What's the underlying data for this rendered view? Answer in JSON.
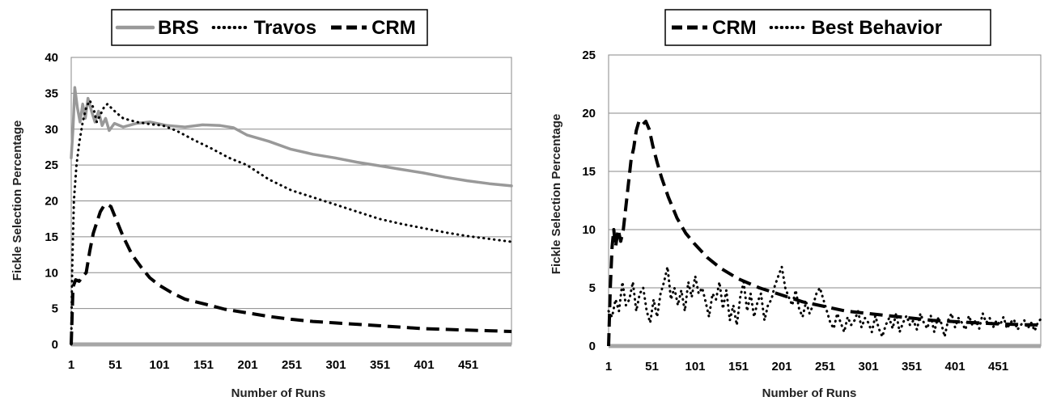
{
  "chart_data": [
    {
      "type": "line",
      "xlabel": "Number of Runs",
      "ylabel": "Fickle Selection Percentage",
      "ylim": [
        0,
        40
      ],
      "xlim": [
        1,
        500
      ],
      "yticks": [
        0,
        5,
        10,
        15,
        20,
        25,
        30,
        35,
        40
      ],
      "xticks": [
        1,
        51,
        101,
        151,
        201,
        251,
        301,
        351,
        401,
        451
      ],
      "grid": true,
      "legend": "top",
      "series": [
        {
          "name": "BRS",
          "color": "#999999",
          "style": "solid",
          "points": [
            [
              1,
              26
            ],
            [
              3,
              30
            ],
            [
              5,
              35.8
            ],
            [
              8,
              33
            ],
            [
              11,
              31
            ],
            [
              14,
              33.5
            ],
            [
              17,
              31.5
            ],
            [
              20,
              34.3
            ],
            [
              24,
              32.5
            ],
            [
              28,
              31
            ],
            [
              32,
              32.5
            ],
            [
              36,
              30.5
            ],
            [
              40,
              31.5
            ],
            [
              44,
              29.8
            ],
            [
              50,
              30.8
            ],
            [
              60,
              30.3
            ],
            [
              75,
              30.8
            ],
            [
              90,
              31
            ],
            [
              110,
              30.5
            ],
            [
              130,
              30.3
            ],
            [
              150,
              30.6
            ],
            [
              170,
              30.5
            ],
            [
              185,
              30.2
            ],
            [
              200,
              29.2
            ],
            [
              225,
              28.3
            ],
            [
              250,
              27.2
            ],
            [
              275,
              26.5
            ],
            [
              300,
              26
            ],
            [
              325,
              25.4
            ],
            [
              350,
              24.9
            ],
            [
              375,
              24.4
            ],
            [
              400,
              23.9
            ],
            [
              425,
              23.3
            ],
            [
              450,
              22.8
            ],
            [
              475,
              22.4
            ],
            [
              500,
              22.1
            ]
          ]
        },
        {
          "name": "Travos",
          "color": "#000000",
          "style": "dotted",
          "points": [
            [
              1,
              0
            ],
            [
              2,
              10
            ],
            [
              4,
              20
            ],
            [
              7,
              25
            ],
            [
              10,
              28
            ],
            [
              14,
              31
            ],
            [
              18,
              33
            ],
            [
              22,
              34
            ],
            [
              26,
              33
            ],
            [
              30,
              31
            ],
            [
              34,
              32
            ],
            [
              38,
              33
            ],
            [
              42,
              33.5
            ],
            [
              46,
              33
            ],
            [
              52,
              32.3
            ],
            [
              60,
              31.5
            ],
            [
              75,
              31
            ],
            [
              90,
              30.7
            ],
            [
              105,
              30.5
            ],
            [
              120,
              29.8
            ],
            [
              140,
              28.5
            ],
            [
              160,
              27.3
            ],
            [
              180,
              26
            ],
            [
              200,
              25
            ],
            [
              225,
              23
            ],
            [
              250,
              21.5
            ],
            [
              275,
              20.5
            ],
            [
              300,
              19.5
            ],
            [
              325,
              18.5
            ],
            [
              350,
              17.5
            ],
            [
              375,
              16.8
            ],
            [
              400,
              16.2
            ],
            [
              425,
              15.6
            ],
            [
              450,
              15.1
            ],
            [
              475,
              14.7
            ],
            [
              500,
              14.3
            ]
          ]
        },
        {
          "name": "CRM",
          "color": "#000000",
          "style": "dashed",
          "points": [
            [
              1,
              0
            ],
            [
              3,
              8
            ],
            [
              6,
              9
            ],
            [
              10,
              8.8
            ],
            [
              14,
              9.5
            ],
            [
              18,
              10
            ],
            [
              22,
              13
            ],
            [
              26,
              15.5
            ],
            [
              30,
              17
            ],
            [
              34,
              18.5
            ],
            [
              38,
              19.3
            ],
            [
              42,
              19.5
            ],
            [
              46,
              19.2
            ],
            [
              50,
              18
            ],
            [
              55,
              16.5
            ],
            [
              60,
              15
            ],
            [
              70,
              12.5
            ],
            [
              80,
              10.8
            ],
            [
              90,
              9.3
            ],
            [
              100,
              8.3
            ],
            [
              115,
              7.2
            ],
            [
              130,
              6.3
            ],
            [
              150,
              5.7
            ],
            [
              175,
              4.9
            ],
            [
              200,
              4.4
            ],
            [
              225,
              3.9
            ],
            [
              250,
              3.5
            ],
            [
              275,
              3.2
            ],
            [
              300,
              3
            ],
            [
              325,
              2.8
            ],
            [
              350,
              2.6
            ],
            [
              375,
              2.4
            ],
            [
              400,
              2.2
            ],
            [
              425,
              2.1
            ],
            [
              450,
              2
            ],
            [
              475,
              1.9
            ],
            [
              500,
              1.8
            ]
          ]
        }
      ]
    },
    {
      "type": "line",
      "xlabel": "Number of Runs",
      "ylabel": "Fickle Selection Percentage",
      "ylim": [
        0,
        25
      ],
      "xlim": [
        1,
        500
      ],
      "yticks": [
        0,
        5,
        10,
        15,
        20,
        25
      ],
      "xticks": [
        1,
        51,
        101,
        151,
        201,
        251,
        301,
        351,
        401,
        451
      ],
      "grid": true,
      "legend": "top",
      "series": [
        {
          "name": "CRM",
          "color": "#000000",
          "style": "dashed",
          "points": [
            [
              1,
              0
            ],
            [
              3,
              5
            ],
            [
              5,
              8.5
            ],
            [
              7,
              10
            ],
            [
              9,
              8.5
            ],
            [
              12,
              10
            ],
            [
              15,
              9
            ],
            [
              18,
              10
            ],
            [
              21,
              12
            ],
            [
              24,
              14
            ],
            [
              27,
              16
            ],
            [
              30,
              17
            ],
            [
              33,
              18.5
            ],
            [
              36,
              19.3
            ],
            [
              40,
              19
            ],
            [
              44,
              19.3
            ],
            [
              48,
              18.6
            ],
            [
              52,
              17.2
            ],
            [
              57,
              15.8
            ],
            [
              62,
              14.5
            ],
            [
              70,
              12.8
            ],
            [
              80,
              11
            ],
            [
              90,
              9.7
            ],
            [
              100,
              8.8
            ],
            [
              115,
              7.6
            ],
            [
              130,
              6.7
            ],
            [
              150,
              5.8
            ],
            [
              175,
              5
            ],
            [
              200,
              4.4
            ],
            [
              225,
              3.8
            ],
            [
              250,
              3.4
            ],
            [
              275,
              3
            ],
            [
              300,
              2.8
            ],
            [
              325,
              2.6
            ],
            [
              350,
              2.4
            ],
            [
              375,
              2.2
            ],
            [
              400,
              2.1
            ],
            [
              425,
              2
            ],
            [
              450,
              1.9
            ],
            [
              475,
              1.85
            ],
            [
              500,
              1.8
            ]
          ]
        },
        {
          "name": "Best Behavior",
          "color": "#000000",
          "style": "dotted",
          "points": [
            [
              1,
              3
            ],
            [
              5,
              2.5
            ],
            [
              9,
              4
            ],
            [
              13,
              3
            ],
            [
              17,
              5.5
            ],
            [
              21,
              3.5
            ],
            [
              25,
              4
            ],
            [
              29,
              5.5
            ],
            [
              33,
              3
            ],
            [
              37,
              4.5
            ],
            [
              41,
              5
            ],
            [
              45,
              3
            ],
            [
              49,
              2
            ],
            [
              53,
              4
            ],
            [
              57,
              2.5
            ],
            [
              61,
              4.5
            ],
            [
              65,
              5.5
            ],
            [
              69,
              6.8
            ],
            [
              73,
              4
            ],
            [
              77,
              5
            ],
            [
              81,
              3.5
            ],
            [
              85,
              4.8
            ],
            [
              89,
              3
            ],
            [
              93,
              5.5
            ],
            [
              97,
              4.2
            ],
            [
              101,
              6
            ],
            [
              105,
              4.5
            ],
            [
              109,
              5
            ],
            [
              113,
              3.8
            ],
            [
              117,
              2.5
            ],
            [
              121,
              4.5
            ],
            [
              125,
              4
            ],
            [
              129,
              5.5
            ],
            [
              133,
              3.2
            ],
            [
              137,
              4.8
            ],
            [
              141,
              2.2
            ],
            [
              145,
              3.5
            ],
            [
              149,
              1.8
            ],
            [
              153,
              4.2
            ],
            [
              157,
              5.5
            ],
            [
              161,
              3
            ],
            [
              165,
              4.5
            ],
            [
              169,
              2.5
            ],
            [
              173,
              3.8
            ],
            [
              177,
              4.5
            ],
            [
              181,
              2.2
            ],
            [
              185,
              3.5
            ],
            [
              189,
              4
            ],
            [
              193,
              5.2
            ],
            [
              197,
              6
            ],
            [
              201,
              6.8
            ],
            [
              205,
              5
            ],
            [
              209,
              4.2
            ],
            [
              213,
              3.5
            ],
            [
              217,
              4.8
            ],
            [
              221,
              3.2
            ],
            [
              225,
              2.5
            ],
            [
              229,
              3.8
            ],
            [
              233,
              2.8
            ],
            [
              237,
              3.5
            ],
            [
              241,
              4.5
            ],
            [
              245,
              5
            ],
            [
              249,
              4
            ],
            [
              253,
              3
            ],
            [
              257,
              2
            ],
            [
              261,
              1.5
            ],
            [
              265,
              2.8
            ],
            [
              269,
              2
            ],
            [
              273,
              1.2
            ],
            [
              277,
              2.5
            ],
            [
              281,
              1.8
            ],
            [
              285,
              2.2
            ],
            [
              289,
              3
            ],
            [
              293,
              1.6
            ],
            [
              297,
              2.4
            ],
            [
              301,
              2
            ],
            [
              305,
              1.2
            ],
            [
              309,
              2.6
            ],
            [
              313,
              1.5
            ],
            [
              317,
              0.8
            ],
            [
              321,
              1.8
            ],
            [
              325,
              2.4
            ],
            [
              329,
              1.5
            ],
            [
              333,
              2.8
            ],
            [
              337,
              1.2
            ],
            [
              341,
              2
            ],
            [
              345,
              2.6
            ],
            [
              349,
              1.8
            ],
            [
              353,
              2.2
            ],
            [
              357,
              1.4
            ],
            [
              361,
              2.8
            ],
            [
              365,
              2
            ],
            [
              369,
              1.5
            ],
            [
              373,
              2.6
            ],
            [
              377,
              1.2
            ],
            [
              381,
              2.4
            ],
            [
              385,
              2
            ],
            [
              389,
              0.8
            ],
            [
              393,
              2.2
            ],
            [
              397,
              2.8
            ],
            [
              401,
              1.6
            ],
            [
              405,
              2.4
            ],
            [
              409,
              2
            ],
            [
              413,
              1.4
            ],
            [
              417,
              2.6
            ],
            [
              421,
              1.8
            ],
            [
              425,
              2.2
            ],
            [
              429,
              1.5
            ],
            [
              433,
              2.8
            ],
            [
              437,
              2
            ],
            [
              441,
              2.4
            ],
            [
              445,
              1.6
            ],
            [
              449,
              2.2
            ],
            [
              453,
              1.8
            ],
            [
              457,
              2.5
            ],
            [
              461,
              1.5
            ],
            [
              465,
              2
            ],
            [
              469,
              2.3
            ],
            [
              473,
              1.4
            ],
            [
              477,
              1.8
            ],
            [
              481,
              2.2
            ],
            [
              485,
              1.5
            ],
            [
              489,
              2
            ],
            [
              493,
              1.3
            ],
            [
              497,
              2.1
            ],
            [
              500,
              2.3
            ]
          ]
        }
      ]
    }
  ]
}
